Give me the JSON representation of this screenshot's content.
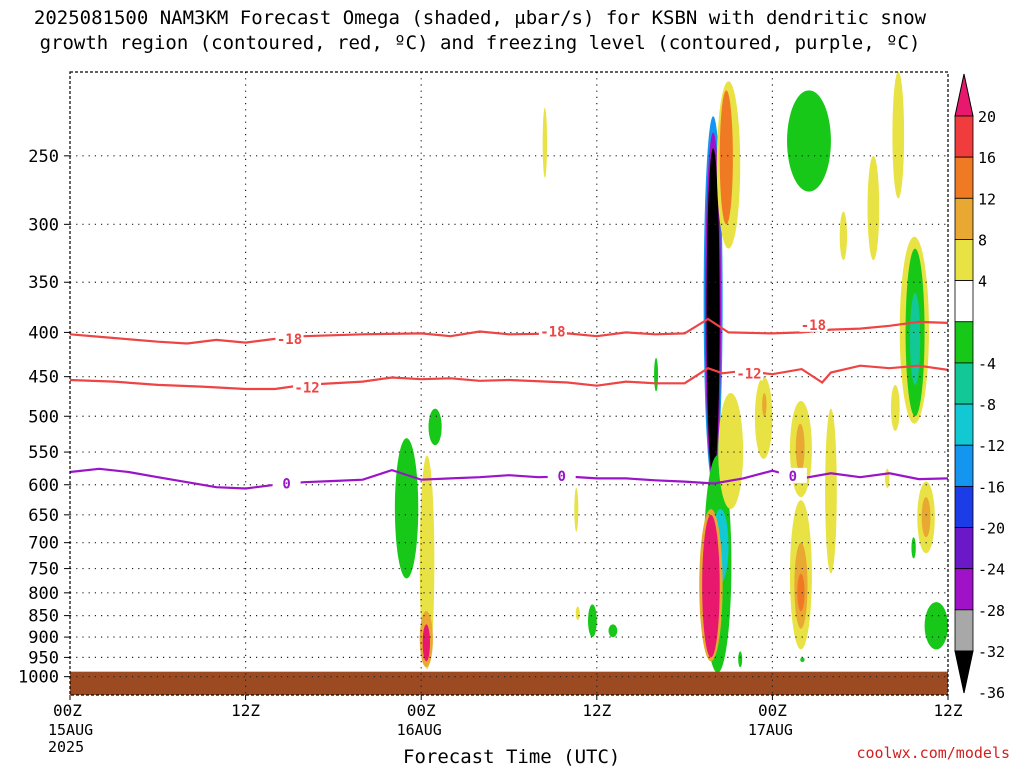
{
  "title_line1": "2025081500 NAM3KM Forecast Omega (shaded, μbar/s) for KSBN with dendritic snow",
  "title_line2": "growth region (contoured, red, ºC) and freezing level (contoured, purple, ºC)",
  "credit": "coolwx.com/models",
  "chart_data": {
    "type": "heatmap",
    "xlabel": "Forecast Time (UTC)",
    "ylabel": "",
    "y_axis": {
      "unit": "hPa",
      "scale": "log-pressure",
      "inverted": true,
      "range": [
        1050,
        200
      ],
      "ticks": [
        250,
        300,
        350,
        400,
        450,
        500,
        550,
        600,
        650,
        700,
        750,
        800,
        850,
        900,
        950,
        1000
      ]
    },
    "x_axis": {
      "range_hours": [
        0,
        60
      ],
      "ticks": [
        {
          "hour": 0,
          "label": "00Z",
          "sub": [
            "15AUG",
            "2025"
          ]
        },
        {
          "hour": 12,
          "label": "12Z",
          "sub": []
        },
        {
          "hour": 24,
          "label": "00Z",
          "sub": [
            "16AUG"
          ]
        },
        {
          "hour": 36,
          "label": "12Z",
          "sub": []
        },
        {
          "hour": 48,
          "label": "00Z",
          "sub": [
            "17AUG"
          ]
        },
        {
          "hour": 60,
          "label": "12Z",
          "sub": []
        }
      ]
    },
    "grid": true,
    "colorbar": {
      "unit": "μbar/s",
      "labels": [
        20,
        16,
        12,
        8,
        4,
        -4,
        -8,
        -12,
        -16,
        -20,
        -24,
        -28,
        -32,
        -36
      ],
      "bins": [
        {
          "from": 20,
          "to": 24,
          "color": "#e8186e"
        },
        {
          "from": 16,
          "to": 20,
          "color": "#f03c3c"
        },
        {
          "from": 12,
          "to": 16,
          "color": "#f07a24"
        },
        {
          "from": 8,
          "to": 12,
          "color": "#e8a832"
        },
        {
          "from": 4,
          "to": 8,
          "color": "#e8e244"
        },
        {
          "from": -4,
          "to": 4,
          "color": "#ffffff"
        },
        {
          "from": -8,
          "to": -4,
          "color": "#18c818"
        },
        {
          "from": -12,
          "to": -8,
          "color": "#12c896"
        },
        {
          "from": -16,
          "to": -12,
          "color": "#12c8d2"
        },
        {
          "from": -20,
          "to": -16,
          "color": "#1496f0"
        },
        {
          "from": -24,
          "to": -20,
          "color": "#1c3ce8"
        },
        {
          "from": -28,
          "to": -24,
          "color": "#6a18c8"
        },
        {
          "from": -32,
          "to": -28,
          "color": "#a012c8"
        },
        {
          "from": -36,
          "to": -32,
          "color": "#a8a8a8"
        },
        {
          "from": -40,
          "to": -36,
          "color": "#000000"
        }
      ]
    },
    "contours": [
      {
        "value": -18,
        "color": "#ee4444",
        "points": [
          [
            0,
            402
          ],
          [
            3,
            406
          ],
          [
            6,
            410
          ],
          [
            8,
            412
          ],
          [
            10,
            408
          ],
          [
            12,
            411
          ],
          [
            14,
            407
          ],
          [
            16,
            404
          ],
          [
            20,
            402
          ],
          [
            24,
            401
          ],
          [
            26,
            404
          ],
          [
            28,
            399
          ],
          [
            30,
            402
          ],
          [
            34,
            401
          ],
          [
            36,
            404
          ],
          [
            38,
            400
          ],
          [
            40,
            402
          ],
          [
            42,
            401
          ],
          [
            43.6,
            386
          ],
          [
            45,
            400
          ],
          [
            48,
            401
          ],
          [
            50,
            400
          ],
          [
            52,
            397
          ],
          [
            54,
            396
          ],
          [
            56,
            393
          ],
          [
            58,
            389
          ],
          [
            60,
            390
          ]
        ],
        "labels": [
          {
            "hour": 15.0,
            "p": 407
          },
          {
            "hour": 33.0,
            "p": 399
          },
          {
            "hour": 50.8,
            "p": 392
          }
        ]
      },
      {
        "value": -12,
        "color": "#ee4444",
        "points": [
          [
            0,
            454
          ],
          [
            3,
            456
          ],
          [
            6,
            460
          ],
          [
            9,
            462
          ],
          [
            12,
            465
          ],
          [
            14,
            465
          ],
          [
            16,
            460
          ],
          [
            20,
            456
          ],
          [
            22,
            451
          ],
          [
            24,
            453
          ],
          [
            26,
            452
          ],
          [
            28,
            455
          ],
          [
            30,
            454
          ],
          [
            34,
            457
          ],
          [
            36,
            461
          ],
          [
            38,
            456
          ],
          [
            40,
            458
          ],
          [
            42,
            458
          ],
          [
            43.6,
            440
          ],
          [
            44.6,
            446
          ],
          [
            46,
            443
          ],
          [
            48,
            447
          ],
          [
            50,
            441
          ],
          [
            51.4,
            457
          ],
          [
            52,
            445
          ],
          [
            54,
            437
          ],
          [
            56,
            440
          ],
          [
            58,
            437
          ],
          [
            60,
            442
          ]
        ],
        "labels": [
          {
            "hour": 16.2,
            "p": 463
          },
          {
            "hour": 46.4,
            "p": 446
          }
        ]
      },
      {
        "value": 0,
        "color": "#9a14c8",
        "points": [
          [
            0,
            580
          ],
          [
            2,
            575
          ],
          [
            4,
            580
          ],
          [
            6,
            588
          ],
          [
            8,
            596
          ],
          [
            10,
            604
          ],
          [
            12,
            606
          ],
          [
            14,
            600
          ],
          [
            16,
            596
          ],
          [
            18,
            594
          ],
          [
            20,
            592
          ],
          [
            22,
            577
          ],
          [
            24,
            592
          ],
          [
            26,
            590
          ],
          [
            28,
            588
          ],
          [
            30,
            585
          ],
          [
            32,
            588
          ],
          [
            34,
            587
          ],
          [
            36,
            590
          ],
          [
            38,
            590
          ],
          [
            40,
            593
          ],
          [
            42,
            595
          ],
          [
            44,
            598
          ],
          [
            46,
            590
          ],
          [
            48,
            578
          ],
          [
            50,
            590
          ],
          [
            52,
            582
          ],
          [
            54,
            588
          ],
          [
            56,
            582
          ],
          [
            58,
            591
          ],
          [
            60,
            590
          ]
        ],
        "labels": [
          {
            "hour": 14.8,
            "p": 598
          },
          {
            "hour": 33.6,
            "p": 586
          },
          {
            "hour": 49.4,
            "p": 586
          }
        ]
      }
    ],
    "omega_features": [
      {
        "h0": 43.3,
        "h1": 44.6,
        "p0": 225,
        "p1": 600,
        "c": "#1496f0"
      },
      {
        "h0": 43.4,
        "h1": 44.5,
        "p0": 235,
        "p1": 595,
        "c": "#a012c8"
      },
      {
        "h0": 43.5,
        "h1": 44.4,
        "p0": 245,
        "p1": 590,
        "c": "#000000"
      },
      {
        "h0": 40.0,
        "h1": 40.1,
        "p0": 428,
        "p1": 468,
        "c": "#18c818"
      },
      {
        "h0": 43.3,
        "h1": 45.2,
        "p0": 555,
        "p1": 990,
        "c": "#18c818"
      },
      {
        "h0": 43.9,
        "h1": 45.0,
        "p0": 640,
        "p1": 780,
        "c": "#12c8d2"
      },
      {
        "h0": 43.0,
        "h1": 44.6,
        "p0": 640,
        "p1": 960,
        "c": "#e8a832"
      },
      {
        "h0": 43.2,
        "h1": 44.4,
        "p0": 650,
        "p1": 950,
        "c": "#e8186e"
      },
      {
        "h0": 44.2,
        "h1": 45.8,
        "p0": 205,
        "p1": 320,
        "c": "#e8e244"
      },
      {
        "h0": 44.4,
        "h1": 45.3,
        "p0": 210,
        "p1": 300,
        "c": "#f07a24"
      },
      {
        "h0": 44.3,
        "h1": 46.0,
        "p0": 470,
        "p1": 640,
        "c": "#e8e244"
      },
      {
        "h0": 32.3,
        "h1": 32.6,
        "p0": 220,
        "p1": 265,
        "c": "#e8e244"
      },
      {
        "h0": 22.2,
        "h1": 23.8,
        "p0": 530,
        "p1": 770,
        "c": "#18c818"
      },
      {
        "h0": 24.5,
        "h1": 25.4,
        "p0": 490,
        "p1": 540,
        "c": "#18c818"
      },
      {
        "h0": 23.9,
        "h1": 24.9,
        "p0": 555,
        "p1": 980,
        "c": "#e8e244"
      },
      {
        "h0": 23.9,
        "h1": 24.8,
        "p0": 840,
        "p1": 975,
        "c": "#e8a832"
      },
      {
        "h0": 24.1,
        "h1": 24.6,
        "p0": 870,
        "p1": 960,
        "c": "#e8186e"
      },
      {
        "h0": 34.5,
        "h1": 34.7,
        "p0": 605,
        "p1": 680,
        "c": "#e8e244"
      },
      {
        "h0": 34.6,
        "h1": 34.8,
        "p0": 830,
        "p1": 860,
        "c": "#e8e244"
      },
      {
        "h0": 35.4,
        "h1": 36.0,
        "p0": 825,
        "p1": 900,
        "c": "#18c818"
      },
      {
        "h0": 36.8,
        "h1": 37.4,
        "p0": 870,
        "p1": 900,
        "c": "#18c818"
      },
      {
        "h0": 45.7,
        "h1": 45.9,
        "p0": 935,
        "p1": 975,
        "c": "#18c818"
      },
      {
        "h0": 49.2,
        "h1": 50.7,
        "p0": 625,
        "p1": 930,
        "c": "#e8e244"
      },
      {
        "h0": 49.5,
        "h1": 50.4,
        "p0": 700,
        "p1": 880,
        "c": "#e8a832"
      },
      {
        "h0": 49.7,
        "h1": 50.2,
        "p0": 760,
        "p1": 840,
        "c": "#f07a24"
      },
      {
        "h0": 46.8,
        "h1": 48.0,
        "p0": 450,
        "p1": 560,
        "c": "#e8e244"
      },
      {
        "h0": 47.3,
        "h1": 47.6,
        "p0": 470,
        "p1": 500,
        "c": "#e8a832"
      },
      {
        "h0": 49.2,
        "h1": 50.7,
        "p0": 480,
        "p1": 620,
        "c": "#e8e244"
      },
      {
        "h0": 49.6,
        "h1": 50.2,
        "p0": 510,
        "p1": 580,
        "c": "#e8a832"
      },
      {
        "h0": 51.6,
        "h1": 52.4,
        "p0": 490,
        "p1": 760,
        "c": "#e8e244"
      },
      {
        "h0": 49.0,
        "h1": 52.0,
        "p0": 210,
        "p1": 275,
        "c": "#18c818"
      },
      {
        "h0": 52.6,
        "h1": 53.1,
        "p0": 290,
        "p1": 330,
        "c": "#e8e244"
      },
      {
        "h0": 54.5,
        "h1": 55.3,
        "p0": 250,
        "p1": 330,
        "c": "#e8e244"
      },
      {
        "h0": 56.2,
        "h1": 57.0,
        "p0": 200,
        "p1": 280,
        "c": "#e8e244"
      },
      {
        "h0": 56.7,
        "h1": 58.7,
        "p0": 310,
        "p1": 510,
        "c": "#e8e244"
      },
      {
        "h0": 57.1,
        "h1": 58.4,
        "p0": 320,
        "p1": 500,
        "c": "#18c818"
      },
      {
        "h0": 57.4,
        "h1": 58.1,
        "p0": 360,
        "p1": 460,
        "c": "#12c896"
      },
      {
        "h0": 56.1,
        "h1": 56.7,
        "p0": 460,
        "p1": 520,
        "c": "#e8e244"
      },
      {
        "h0": 55.7,
        "h1": 56.0,
        "p0": 575,
        "p1": 605,
        "c": "#e8e244"
      },
      {
        "h0": 57.9,
        "h1": 59.1,
        "p0": 595,
        "p1": 720,
        "c": "#e8e244"
      },
      {
        "h0": 58.2,
        "h1": 58.8,
        "p0": 620,
        "p1": 690,
        "c": "#e8a832"
      },
      {
        "h0": 57.5,
        "h1": 57.8,
        "p0": 690,
        "p1": 730,
        "c": "#18c818"
      },
      {
        "h0": 58.4,
        "h1": 60.0,
        "p0": 820,
        "p1": 930,
        "c": "#18c818"
      },
      {
        "h0": 49.9,
        "h1": 50.2,
        "p0": 950,
        "p1": 962,
        "c": "#18c818"
      }
    ],
    "surface": {
      "from_hpa": 1000,
      "color": "#9c4a22"
    }
  }
}
